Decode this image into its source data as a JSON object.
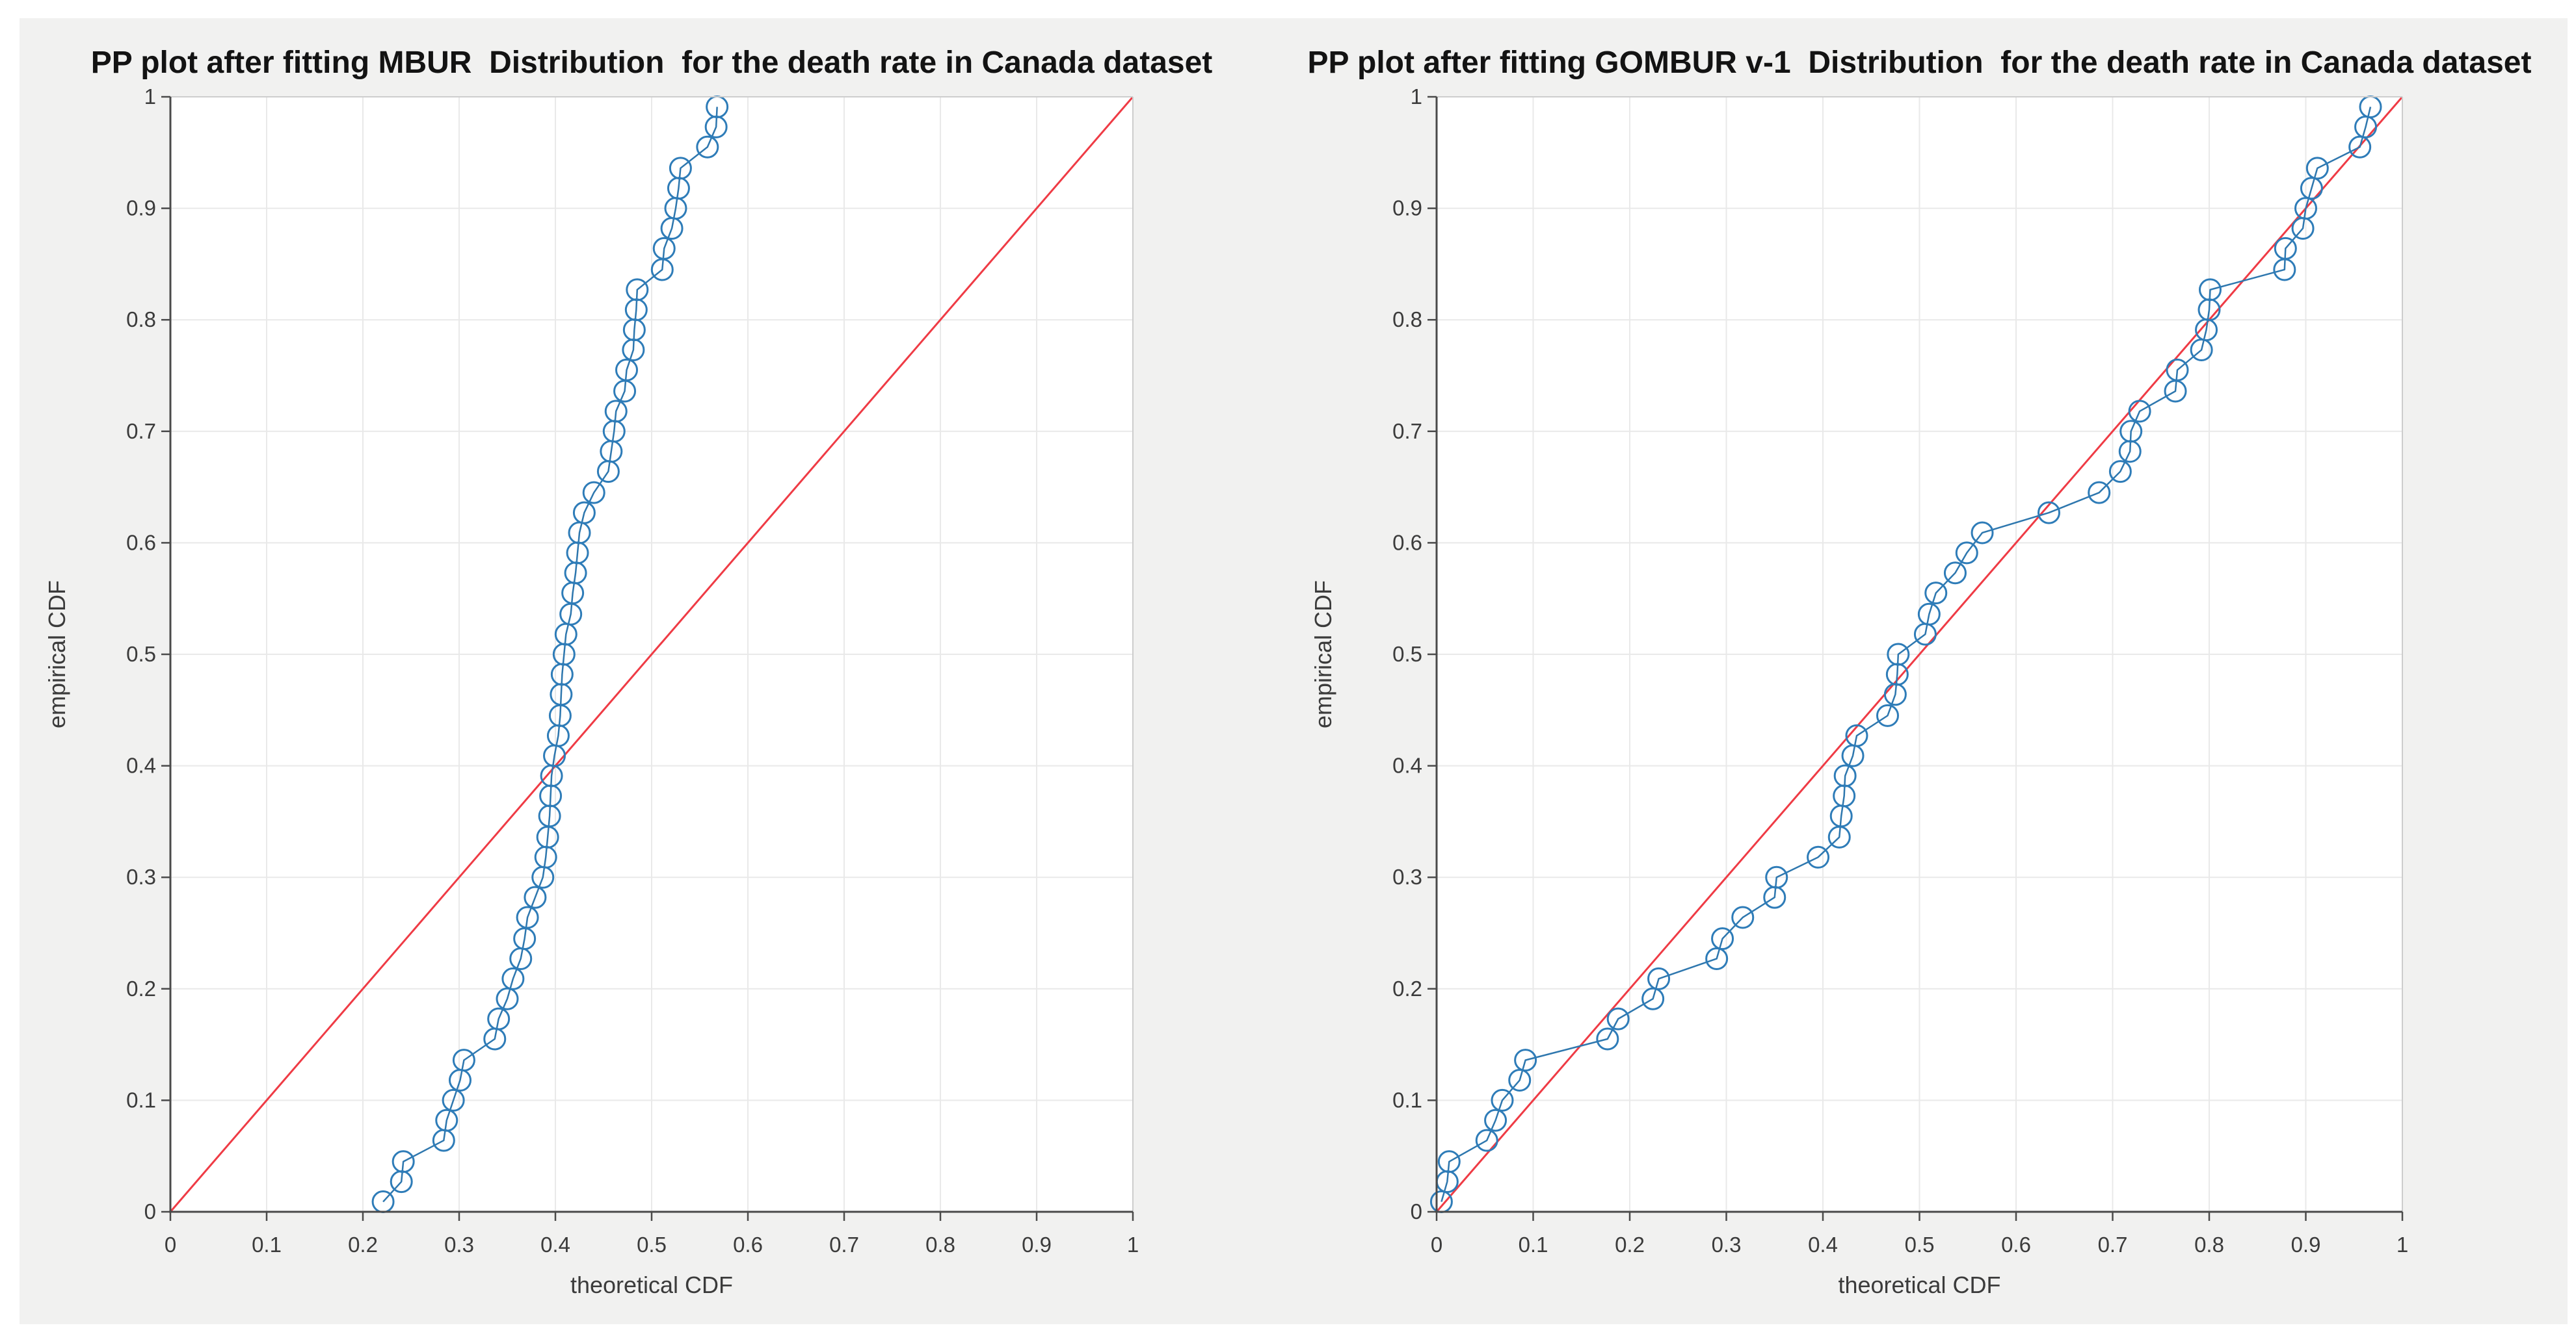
{
  "figure": {
    "background": "#f1f1f0",
    "plot_background": "#ffffff",
    "grid_color": "#e9e9e9",
    "axis_dark_color": "#4a4a4a",
    "frame_light_color": "#cdcdcd",
    "tick_label_color": "#3b3b3b",
    "title_color": "#131313",
    "data_color": "#2e7cb8",
    "data_line_color": "#2e77ae",
    "reference_line_color": "#ef3b45"
  },
  "chart_data": [
    {
      "type": "scatter",
      "title": "PP plot after fitting MBUR  Distribution  for the death rate in Canada dataset",
      "xlabel": "theoretical CDF",
      "ylabel": "empirical CDF",
      "xlim": [
        0,
        1
      ],
      "ylim": [
        0,
        1
      ],
      "grid": true,
      "legend_position": "none",
      "xticks": {
        "values": [
          0,
          0.1,
          0.2,
          0.3,
          0.4,
          0.5,
          0.6,
          0.7,
          0.8,
          0.9,
          1
        ],
        "labels": [
          "0",
          "0.1",
          "0.2",
          "0.3",
          "0.4",
          "0.5",
          "0.6",
          "0.7",
          "0.8",
          "0.9",
          "1"
        ]
      },
      "yticks": {
        "values": [
          0,
          0.1,
          0.2,
          0.3,
          0.4,
          0.5,
          0.6,
          0.7,
          0.8,
          0.9,
          1
        ],
        "labels": [
          "0",
          "0.1",
          "0.2",
          "0.3",
          "0.4",
          "0.5",
          "0.6",
          "0.7",
          "0.8",
          "0.9",
          "1"
        ]
      },
      "series": [
        {
          "name": "empirical vs theoretical points",
          "marker": "circle",
          "x": [
            0.221,
            0.24,
            0.242,
            0.284,
            0.287,
            0.294,
            0.301,
            0.305,
            0.337,
            0.341,
            0.35,
            0.356,
            0.364,
            0.368,
            0.371,
            0.379,
            0.387,
            0.39,
            0.392,
            0.394,
            0.395,
            0.396,
            0.399,
            0.403,
            0.405,
            0.406,
            0.407,
            0.409,
            0.411,
            0.416,
            0.418,
            0.421,
            0.423,
            0.425,
            0.43,
            0.44,
            0.455,
            0.458,
            0.461,
            0.463,
            0.472,
            0.474,
            0.481,
            0.482,
            0.484,
            0.485,
            0.511,
            0.513,
            0.521,
            0.525,
            0.528,
            0.53,
            0.558,
            0.567,
            0.568
          ],
          "y": [
            0.009,
            0.027,
            0.045,
            0.064,
            0.082,
            0.1,
            0.118,
            0.136,
            0.155,
            0.173,
            0.191,
            0.209,
            0.227,
            0.245,
            0.264,
            0.282,
            0.3,
            0.318,
            0.336,
            0.355,
            0.373,
            0.391,
            0.409,
            0.427,
            0.445,
            0.464,
            0.482,
            0.5,
            0.518,
            0.536,
            0.555,
            0.573,
            0.591,
            0.609,
            0.627,
            0.645,
            0.664,
            0.682,
            0.7,
            0.718,
            0.736,
            0.755,
            0.773,
            0.791,
            0.809,
            0.827,
            0.845,
            0.864,
            0.882,
            0.9,
            0.918,
            0.936,
            0.955,
            0.973,
            0.991
          ]
        },
        {
          "name": "reference line y=x",
          "marker": "none",
          "x": [
            0,
            1
          ],
          "y": [
            0,
            1
          ]
        }
      ]
    },
    {
      "type": "scatter",
      "title": "PP plot after fitting GOMBUR v-1  Distribution  for the death rate in Canada dataset",
      "xlabel": "theoretical CDF",
      "ylabel": "empirical CDF",
      "xlim": [
        0,
        1
      ],
      "ylim": [
        0,
        1
      ],
      "grid": true,
      "legend_position": "none",
      "xticks": {
        "values": [
          0,
          0.1,
          0.2,
          0.3,
          0.4,
          0.5,
          0.6,
          0.7,
          0.8,
          0.9,
          1
        ],
        "labels": [
          "0",
          "0.1",
          "0.2",
          "0.3",
          "0.4",
          "0.5",
          "0.6",
          "0.7",
          "0.8",
          "0.9",
          "1"
        ]
      },
      "yticks": {
        "values": [
          0,
          0.1,
          0.2,
          0.3,
          0.4,
          0.5,
          0.6,
          0.7,
          0.8,
          0.9,
          1
        ],
        "labels": [
          "0",
          "0.1",
          "0.2",
          "0.3",
          "0.4",
          "0.5",
          "0.6",
          "0.7",
          "0.8",
          "0.9",
          "1"
        ]
      },
      "series": [
        {
          "name": "empirical vs theoretical points",
          "marker": "circle",
          "x": [
            0.005,
            0.011,
            0.013,
            0.052,
            0.061,
            0.068,
            0.086,
            0.092,
            0.177,
            0.188,
            0.224,
            0.23,
            0.29,
            0.296,
            0.317,
            0.35,
            0.352,
            0.395,
            0.417,
            0.419,
            0.422,
            0.423,
            0.431,
            0.435,
            0.467,
            0.475,
            0.477,
            0.478,
            0.506,
            0.51,
            0.517,
            0.537,
            0.549,
            0.565,
            0.634,
            0.686,
            0.708,
            0.718,
            0.719,
            0.728,
            0.765,
            0.767,
            0.792,
            0.797,
            0.8,
            0.801,
            0.878,
            0.879,
            0.897,
            0.9,
            0.906,
            0.912,
            0.956,
            0.962,
            0.967
          ],
          "y": [
            0.009,
            0.027,
            0.045,
            0.064,
            0.082,
            0.1,
            0.118,
            0.136,
            0.155,
            0.173,
            0.191,
            0.209,
            0.227,
            0.245,
            0.264,
            0.282,
            0.3,
            0.318,
            0.336,
            0.355,
            0.373,
            0.391,
            0.409,
            0.427,
            0.445,
            0.464,
            0.482,
            0.5,
            0.518,
            0.536,
            0.555,
            0.573,
            0.591,
            0.609,
            0.627,
            0.645,
            0.664,
            0.682,
            0.7,
            0.718,
            0.736,
            0.755,
            0.773,
            0.791,
            0.809,
            0.827,
            0.845,
            0.864,
            0.882,
            0.9,
            0.918,
            0.936,
            0.955,
            0.973,
            0.991
          ]
        },
        {
          "name": "reference line y=x",
          "marker": "none",
          "x": [
            0,
            1
          ],
          "y": [
            0,
            1
          ]
        }
      ]
    }
  ]
}
